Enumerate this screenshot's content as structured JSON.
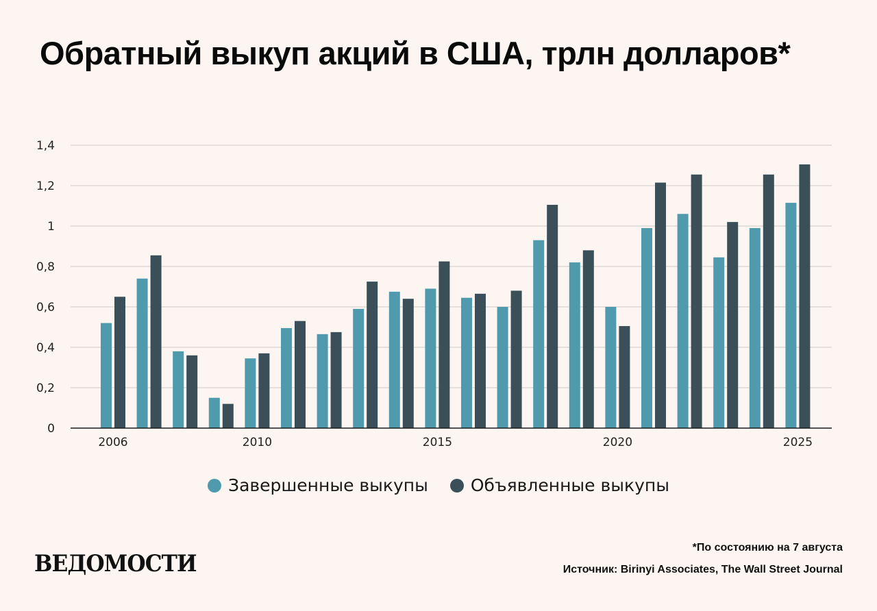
{
  "title": "Обратный выкуп акций в США, трлн долларов*",
  "colors": {
    "completed": "#4f9aad",
    "announced": "#3a4f58",
    "background": "#fcf5f1",
    "grid": "#cfcac6"
  },
  "chart_data": {
    "type": "bar",
    "x": [
      2006,
      2007,
      2008,
      2009,
      2010,
      2011,
      2012,
      2013,
      2014,
      2015,
      2016,
      2017,
      2018,
      2019,
      2020,
      2021,
      2022,
      2023,
      2024,
      2025
    ],
    "x_tick_labels": [
      "2006",
      "2010",
      "2015",
      "2020",
      "2025"
    ],
    "x_ticks": [
      2006,
      2010,
      2015,
      2020,
      2025
    ],
    "y_tick_labels": [
      "0",
      "0,2",
      "0,4",
      "0,6",
      "0,8",
      "1",
      "1,2",
      "1,4"
    ],
    "ylim": [
      0,
      1.4
    ],
    "grid": true,
    "legend_position": "bottom",
    "series": [
      {
        "name": "Завершенные выкупы",
        "values": [
          0.52,
          0.74,
          0.38,
          0.15,
          0.345,
          0.495,
          0.465,
          0.59,
          0.675,
          0.69,
          0.645,
          0.6,
          0.93,
          0.82,
          0.6,
          0.99,
          1.06,
          0.845,
          0.99,
          1.115
        ]
      },
      {
        "name": "Объявленные выкупы",
        "values": [
          0.65,
          0.855,
          0.36,
          0.12,
          0.37,
          0.53,
          0.475,
          0.725,
          0.64,
          0.825,
          0.665,
          0.68,
          1.105,
          0.88,
          0.505,
          1.215,
          1.255,
          1.02,
          1.255,
          1.305
        ]
      }
    ]
  },
  "legend": {
    "completed": "Завершенные выкупы",
    "announced": "Объявленные выкупы"
  },
  "logo": "ВЕДОМОСТИ",
  "note": "*По состоянию на 7 августа",
  "source": "Источник: Birinyi Associates, The Wall Street Journal"
}
